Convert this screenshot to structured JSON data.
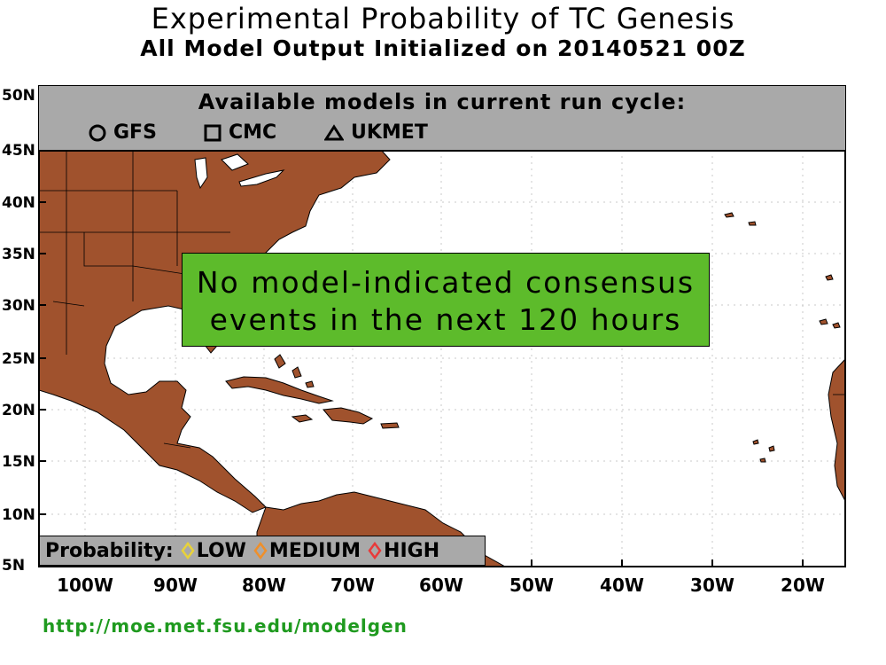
{
  "title": "Experimental Probability of TC Genesis",
  "subtitle": "All Model Output Initialized on 20140521 00Z",
  "lat_labels": [
    "50N",
    "45N",
    "40N",
    "35N",
    "30N",
    "25N",
    "20N",
    "15N",
    "10N",
    "5N"
  ],
  "lon_labels": [
    "100W",
    "90W",
    "80W",
    "70W",
    "60W",
    "50W",
    "40W",
    "30W",
    "20W"
  ],
  "models": {
    "heading": "Available models in current run cycle:",
    "items": [
      {
        "label": "GFS",
        "icon": "circle-icon"
      },
      {
        "label": "CMC",
        "icon": "square-icon"
      },
      {
        "label": "UKMET",
        "icon": "triangle-icon"
      }
    ]
  },
  "consensus": {
    "line1": "No model-indicated consensus",
    "line2": "events in the next 120 hours"
  },
  "probability": {
    "label": "Probability:",
    "levels": [
      {
        "label": "LOW",
        "color": "#e8d23a"
      },
      {
        "label": "MEDIUM",
        "color": "#ef8f2a"
      },
      {
        "label": "HIGH",
        "color": "#e83a3a"
      }
    ]
  },
  "url": "http://moe.met.fsu.edu/modelgen",
  "colors": {
    "land": "#a0522d",
    "ocean": "#ffffff",
    "panel": "#a9a9a9",
    "consensus_bg": "#5dbb2b"
  }
}
